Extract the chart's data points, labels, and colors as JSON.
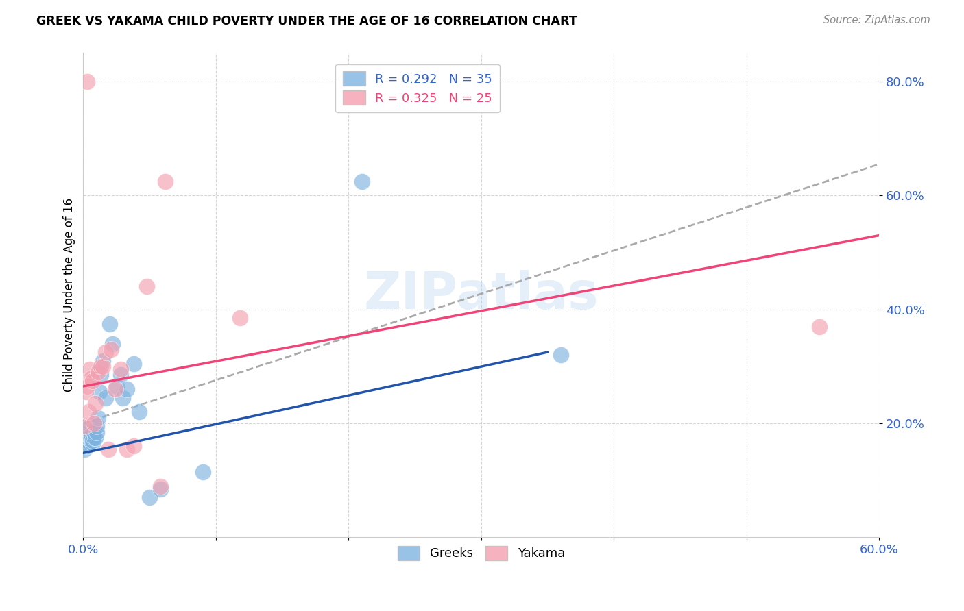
{
  "title": "GREEK VS YAKAMA CHILD POVERTY UNDER THE AGE OF 16 CORRELATION CHART",
  "source": "Source: ZipAtlas.com",
  "ylabel": "Child Poverty Under the Age of 16",
  "legend_label1": "Greeks",
  "legend_label2": "Yakama",
  "watermark": "ZIPatlas",
  "xlim": [
    0.0,
    0.6
  ],
  "ylim": [
    0.0,
    0.85
  ],
  "blue_color": "#7EB3E0",
  "pink_color": "#F4A0B0",
  "blue_line_color": "#2255AA",
  "pink_line_color": "#EE4477",
  "dash_color": "#AAAAAA",
  "greeks_x": [
    0.001,
    0.002,
    0.003,
    0.003,
    0.004,
    0.004,
    0.005,
    0.005,
    0.006,
    0.006,
    0.007,
    0.007,
    0.008,
    0.008,
    0.009,
    0.01,
    0.01,
    0.011,
    0.012,
    0.013,
    0.015,
    0.017,
    0.02,
    0.022,
    0.025,
    0.028,
    0.03,
    0.033,
    0.038,
    0.042,
    0.05,
    0.058,
    0.09,
    0.21,
    0.36
  ],
  "greeks_y": [
    0.155,
    0.165,
    0.17,
    0.16,
    0.175,
    0.18,
    0.185,
    0.195,
    0.17,
    0.18,
    0.165,
    0.17,
    0.175,
    0.185,
    0.175,
    0.185,
    0.195,
    0.21,
    0.255,
    0.285,
    0.31,
    0.245,
    0.375,
    0.34,
    0.265,
    0.285,
    0.245,
    0.26,
    0.305,
    0.22,
    0.07,
    0.085,
    0.115,
    0.625,
    0.32
  ],
  "yakama_x": [
    0.001,
    0.002,
    0.003,
    0.004,
    0.005,
    0.006,
    0.007,
    0.008,
    0.009,
    0.011,
    0.013,
    0.015,
    0.017,
    0.019,
    0.021,
    0.024,
    0.028,
    0.033,
    0.038,
    0.048,
    0.058,
    0.062,
    0.118,
    0.555,
    0.003
  ],
  "yakama_y": [
    0.195,
    0.255,
    0.265,
    0.22,
    0.295,
    0.28,
    0.275,
    0.2,
    0.235,
    0.29,
    0.3,
    0.3,
    0.325,
    0.155,
    0.33,
    0.26,
    0.295,
    0.155,
    0.16,
    0.44,
    0.09,
    0.625,
    0.385,
    0.37,
    0.8
  ],
  "blue_line_x": [
    0.0,
    0.35
  ],
  "blue_line_y": [
    0.148,
    0.325
  ],
  "pink_line_x": [
    0.0,
    0.6
  ],
  "pink_line_y": [
    0.265,
    0.53
  ],
  "dash_line_x": [
    0.0,
    0.6
  ],
  "dash_line_y": [
    0.2,
    0.655
  ]
}
